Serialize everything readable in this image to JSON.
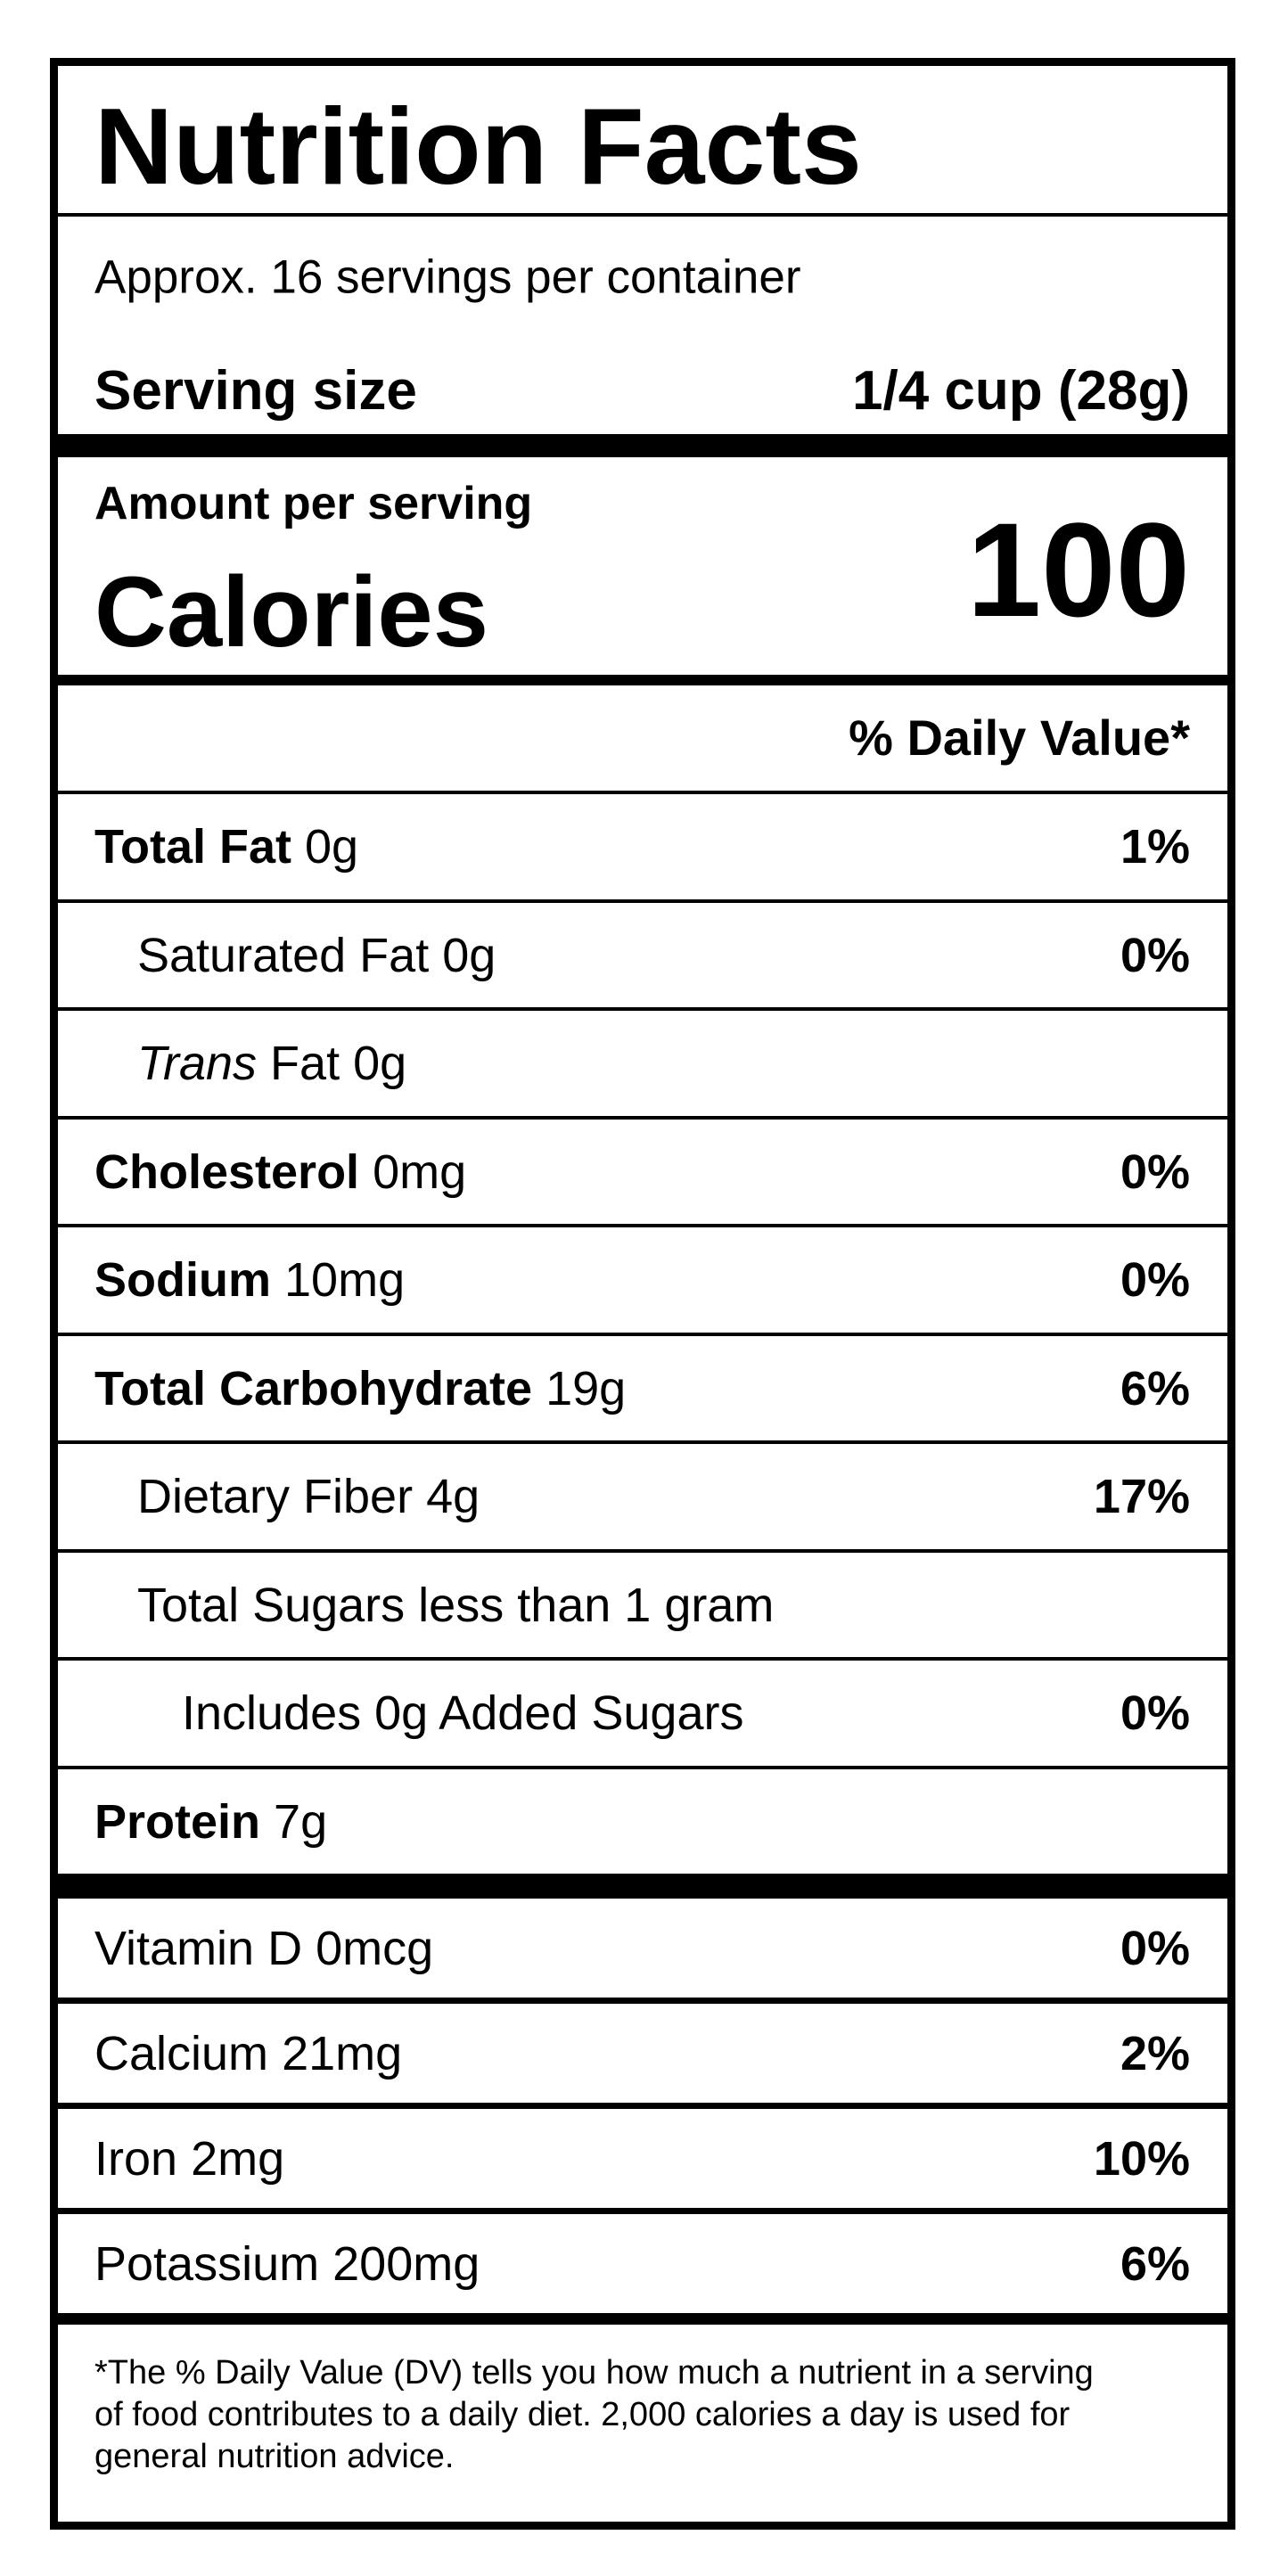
{
  "header": {
    "title": "Nutrition Facts",
    "servings": "Approx. 16 servings per container",
    "serving_size_label": "Serving size",
    "serving_size_value": "1/4 cup (28g)"
  },
  "calories": {
    "amount_label": "Amount per serving",
    "label": "Calories",
    "value": "100"
  },
  "daily_value_header": "% Daily Value*",
  "nutrients": [
    {
      "name": "Total Fat",
      "amount": "0g",
      "dv": "1%",
      "bold": true,
      "indent": 0
    },
    {
      "name": "Saturated Fat",
      "amount": "0g",
      "dv": "0%",
      "bold": false,
      "indent": 1
    },
    {
      "name_italic": "Trans",
      "name": "Fat",
      "amount": "0g",
      "bold": false,
      "indent": 1
    },
    {
      "name": "Cholesterol",
      "amount": "0mg",
      "dv": "0%",
      "bold": true,
      "indent": 0
    },
    {
      "name": "Sodium",
      "amount": "10mg",
      "dv": "0%",
      "bold": true,
      "indent": 0
    },
    {
      "name": "Total Carbohydrate",
      "amount": "19g",
      "dv": "6%",
      "bold": true,
      "indent": 0
    },
    {
      "name": "Dietary Fiber",
      "amount": "4g",
      "dv": "17%",
      "bold": false,
      "indent": 1
    },
    {
      "name": "Total Sugars less than 1 gram",
      "bold": false,
      "indent": 1
    },
    {
      "name": "Includes 0g Added Sugars",
      "dv": "0%",
      "bold": false,
      "indent": 2
    },
    {
      "name": "Protein",
      "amount": "7g",
      "bold": true,
      "indent": 0
    }
  ],
  "vitamins": [
    {
      "name": "Vitamin D",
      "amount": "0mcg",
      "dv": "0%"
    },
    {
      "name": "Calcium",
      "amount": "21mg",
      "dv": "2%"
    },
    {
      "name": "Iron",
      "amount": "2mg",
      "dv": "10%"
    },
    {
      "name": "Potassium",
      "amount": "200mg",
      "dv": "6%"
    }
  ],
  "footnote": [
    "*The % Daily Value (DV) tells you how much a nutrient in a serving",
    "of food contributes to a daily diet. 2,000 calories a day is used for",
    "general nutrition advice."
  ]
}
